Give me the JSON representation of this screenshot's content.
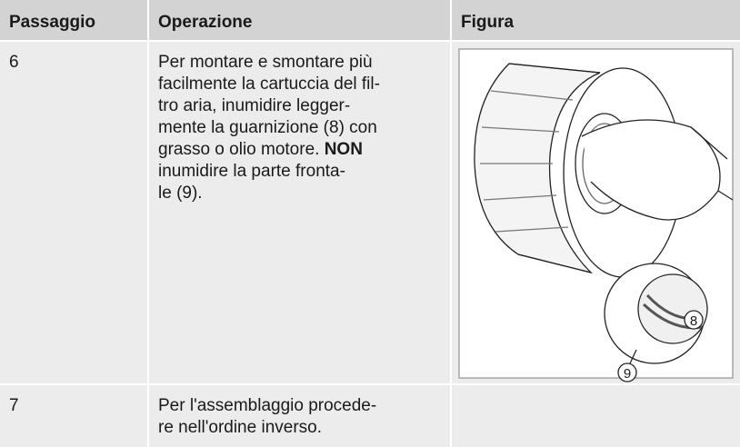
{
  "table": {
    "header": [
      "Passaggio",
      "Operazione",
      "Figura"
    ],
    "rows": [
      {
        "step": "6",
        "operation": [
          "Per montare e smontare più",
          "facilmente la cartuccia del fil-",
          "tro aria, inumidire legger-",
          "mente la guarnizione (8) con",
          "grasso o olio motore. ",
          "inumidire la parte fronta-",
          "le (9)."
        ],
        "operation_bold": "NON",
        "figure_labels": [
          "8",
          "9"
        ]
      },
      {
        "step": "7",
        "operation": [
          "Per l'assemblaggio procede-",
          "re nell'ordine inverso."
        ]
      }
    ]
  }
}
